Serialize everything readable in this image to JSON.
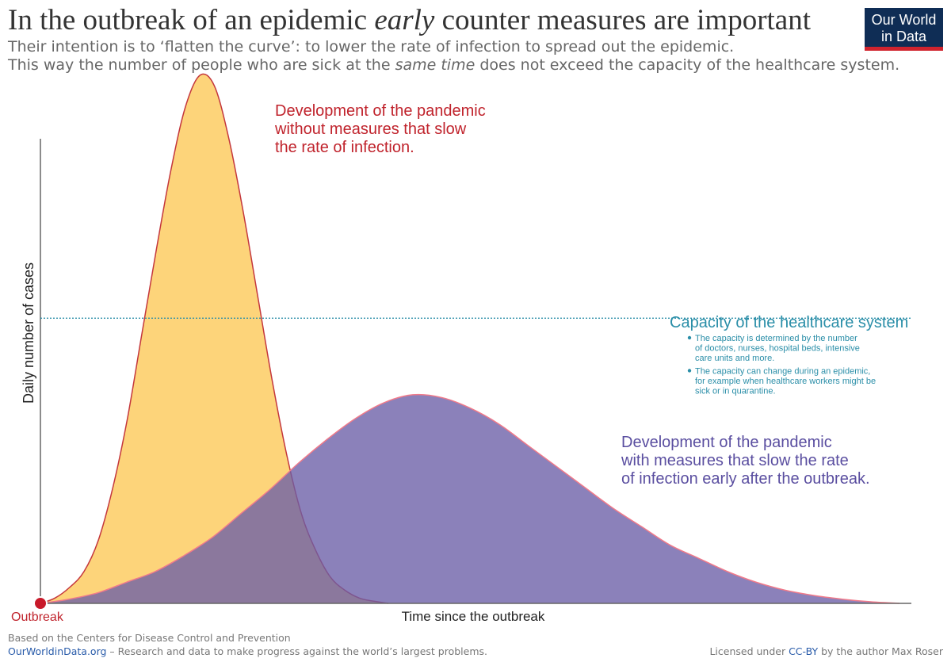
{
  "header": {
    "title_a": "In the outbreak of an epidemic ",
    "title_em": "early",
    "title_b": " counter measures are important",
    "subtitle1": "Their intention is to ‘flatten the curve’: to lower the rate of infection to spread out the epidemic.",
    "subtitle2_a": "This way the number of people who are sick at the ",
    "subtitle2_em": "same time",
    "subtitle2_b": " does not exceed the capacity of the healthcare system."
  },
  "logo": {
    "line1": "Our World",
    "line2": "in Data"
  },
  "chart_data": {
    "type": "area",
    "xlabel": "Time since the outbreak",
    "ylabel": "Daily number of cases",
    "origin_label": "Outbreak",
    "series": [
      {
        "values": [
          0,
          1,
          3,
          6,
          12,
          22,
          35,
          51,
          67,
          82,
          94,
          100,
          98,
          88,
          74,
          58,
          42,
          28,
          17,
          10,
          5,
          2.5,
          1,
          0.4,
          0
        ],
        "color": "#fdd47a",
        "line_color": "#c4373d",
        "label": [
          "Development of the pandemic",
          "without measures that slow",
          "the rate of infection."
        ],
        "label_color": "#c0232c"
      },
      {
        "values": [
          0,
          0.8,
          2,
          4,
          6,
          9,
          12.5,
          17,
          21.5,
          26.5,
          31,
          35,
          38,
          39.5,
          39,
          37,
          34,
          30,
          26,
          22,
          18,
          14.5,
          11,
          8.5,
          6,
          4,
          2.5,
          1.5,
          0.8,
          0.3,
          0
        ],
        "color": "#6a5ea6",
        "line_color": "#f07a8a",
        "label": [
          "Development of the pandemic",
          "with measures that slow the rate",
          "of infection early after the outbreak."
        ],
        "label_color": "#5a4ea0"
      }
    ],
    "capacity": {
      "value": 54,
      "color": "#2a8ea8",
      "label": "Capacity of the healthcare system",
      "notes": [
        [
          "The capacity is determined by the number",
          "of doctors, nurses, hospital beds, intensive",
          "care units and more."
        ],
        [
          "The capacity can change during an epidemic,",
          "for example when healthcare workers might be",
          "sick or in quarantine."
        ]
      ]
    },
    "ylim": [
      0,
      100
    ],
    "grid": false,
    "legend": "none"
  },
  "footer": {
    "source": "Based on the Centers for Disease Control and Prevention",
    "site": "OurWorldinData.org",
    "site_desc": " – Research and data to make progress against the world’s largest problems.",
    "license_a": "Licensed under ",
    "license_link": "CC-BY",
    "license_b": " by the author Max Roser"
  }
}
